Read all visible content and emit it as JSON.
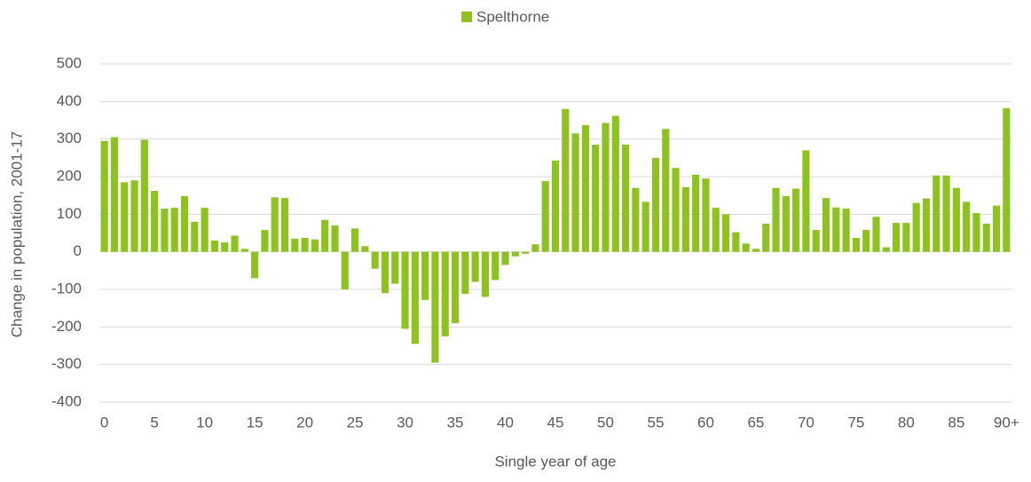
{
  "chart_data": {
    "type": "bar",
    "legend": "top",
    "xlabel": "Single year of age",
    "ylabel": "Change in population, 2001-17",
    "categories": [
      "0",
      null,
      null,
      null,
      null,
      "5",
      null,
      null,
      null,
      null,
      "10",
      null,
      null,
      null,
      null,
      "15",
      null,
      null,
      null,
      null,
      "20",
      null,
      null,
      null,
      null,
      "25",
      null,
      null,
      null,
      null,
      "30",
      null,
      null,
      null,
      null,
      "35",
      null,
      null,
      null,
      null,
      "40",
      null,
      null,
      null,
      null,
      "45",
      null,
      null,
      null,
      null,
      "50",
      null,
      null,
      null,
      null,
      "55",
      null,
      null,
      null,
      null,
      "60",
      null,
      null,
      null,
      null,
      "65",
      null,
      null,
      null,
      null,
      "70",
      null,
      null,
      null,
      null,
      "75",
      null,
      null,
      null,
      null,
      "80",
      null,
      null,
      null,
      null,
      "85",
      null,
      null,
      null,
      null,
      "90+"
    ],
    "series": [
      {
        "name": "Spelthorne",
        "color": "#8dc21f",
        "values": [
          295,
          305,
          185,
          190,
          298,
          162,
          115,
          117,
          148,
          80,
          117,
          30,
          25,
          43,
          8,
          -70,
          58,
          145,
          143,
          35,
          37,
          33,
          85,
          70,
          -100,
          62,
          15,
          -45,
          -110,
          -85,
          -205,
          -245,
          -128,
          -295,
          -225,
          -190,
          -112,
          -80,
          -120,
          -75,
          -35,
          -12,
          -5,
          20,
          188,
          243,
          380,
          315,
          337,
          285,
          343,
          362,
          285,
          170,
          133,
          250,
          327,
          223,
          172,
          205,
          195,
          117,
          100,
          52,
          22,
          8,
          75,
          170,
          148,
          168,
          270,
          58,
          143,
          118,
          115,
          37,
          58,
          93,
          12,
          77,
          77,
          130,
          142,
          203,
          203,
          170,
          133,
          103,
          75,
          123,
          382
        ]
      }
    ],
    "ylim": [
      -400,
      500
    ],
    "yticks": [
      -400,
      -300,
      -200,
      -100,
      0,
      100,
      200,
      300,
      400,
      500
    ],
    "grid": true
  }
}
